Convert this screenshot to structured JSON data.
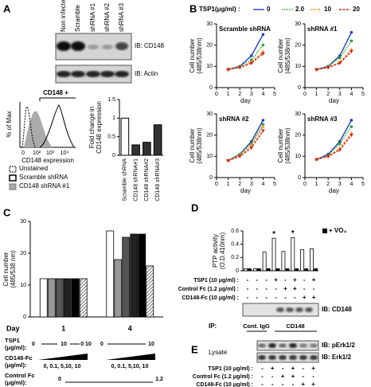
{
  "panel_labels": [
    "A",
    "B",
    "C",
    "D",
    "E"
  ],
  "panel_a": {
    "blot_lanes": [
      "Non infected",
      "Scramble",
      "shRNA #1",
      "shRNA #2",
      "shRNA #3"
    ],
    "blot_labels": [
      "IB: CD148",
      "IB: Actin"
    ],
    "histogram": {
      "gate": "CD148 +",
      "ylabel": "% of Max",
      "xlabel": "CD148 expression",
      "xticks": [
        "0",
        "10²",
        "10³",
        "10⁴"
      ],
      "legend": [
        "Unstained",
        "Scramble shRNA",
        "CD148 shRNA #1"
      ]
    }
  },
  "chart_data": [
    {
      "type": "bar",
      "ylabel": [
        "Fold change in",
        "CD148 expression"
      ],
      "categories": [
        "Scramble shRNA",
        "CD148 shRNA#1",
        "CD148 shRNA#2",
        "CD148 shRNA#3"
      ],
      "values": [
        1.0,
        0.28,
        0.35,
        0.82
      ],
      "colors": [
        "#ffffff",
        "#333333",
        "#333333",
        "#333333"
      ],
      "ylim": [
        0,
        1.5
      ],
      "yticks": [
        0,
        0.5,
        1,
        1.5
      ]
    },
    {
      "type": "line",
      "legend_title": "TSP1(μg/ml) :",
      "title": "Scramble shRNA",
      "xlabel": "day",
      "ylabel": [
        "Cell number",
        "(485/538nm)"
      ],
      "x": [
        1,
        2,
        3,
        4
      ],
      "xlim": [
        0,
        5
      ],
      "xticks": [
        0,
        1,
        2,
        3,
        4,
        5
      ],
      "ylim": [
        0,
        30
      ],
      "yticks": [
        0,
        10,
        20,
        30
      ],
      "series": [
        {
          "name": "0",
          "color": "#1f3fbf",
          "values": [
            8.5,
            10,
            15,
            25
          ]
        },
        {
          "name": "2.0",
          "color": "#2ca02c",
          "values": [
            8.5,
            10,
            13,
            20
          ]
        },
        {
          "name": "10",
          "color": "#f0a030",
          "values": [
            8.5,
            9.5,
            12,
            17
          ]
        },
        {
          "name": "20",
          "color": "#d62020",
          "values": [
            8.5,
            9.5,
            11.5,
            16
          ]
        }
      ]
    },
    {
      "type": "line",
      "title": "shRNA #1",
      "xlabel": "day",
      "ylabel": [
        "Cell number",
        "(485/538nm)"
      ],
      "x": [
        1,
        2,
        3,
        4
      ],
      "xlim": [
        0,
        5
      ],
      "xticks": [
        0,
        1,
        2,
        3,
        4,
        5
      ],
      "ylim": [
        0,
        30
      ],
      "yticks": [
        0,
        10,
        20,
        30
      ],
      "series": [
        {
          "color": "#1f3fbf",
          "values": [
            8.5,
            10,
            15,
            26
          ]
        },
        {
          "color": "#2ca02c",
          "values": [
            8.5,
            10,
            14,
            22
          ]
        },
        {
          "color": "#f0a030",
          "values": [
            8.5,
            9.5,
            12,
            18
          ]
        },
        {
          "color": "#d62020",
          "values": [
            8.5,
            9.5,
            11.5,
            17
          ]
        }
      ]
    },
    {
      "type": "line",
      "title": "shRNA #2",
      "xlabel": "day",
      "ylabel": [
        "Cell number",
        "(485/538nm)"
      ],
      "x": [
        1,
        2,
        3,
        4
      ],
      "xlim": [
        0,
        5
      ],
      "xticks": [
        0,
        1,
        2,
        3,
        4,
        5
      ],
      "ylim": [
        0,
        30
      ],
      "yticks": [
        0,
        10,
        20,
        30
      ],
      "series": [
        {
          "color": "#1f3fbf",
          "values": [
            8,
            11,
            17,
            27
          ]
        },
        {
          "color": "#2ca02c",
          "values": [
            8,
            11,
            16,
            25
          ]
        },
        {
          "color": "#f0a030",
          "values": [
            8,
            10.5,
            15,
            24
          ]
        },
        {
          "color": "#d62020",
          "values": [
            8,
            10,
            14,
            22
          ]
        }
      ]
    },
    {
      "type": "line",
      "title": "shRNA #3",
      "xlabel": "day",
      "ylabel": [
        "Cell number",
        "(485/538nm)"
      ],
      "x": [
        1,
        2,
        3,
        4
      ],
      "xlim": [
        0,
        5
      ],
      "xticks": [
        0,
        1,
        2,
        3,
        4,
        5
      ],
      "ylim": [
        0,
        30
      ],
      "yticks": [
        0,
        10,
        20,
        30
      ],
      "series": [
        {
          "color": "#1f3fbf",
          "values": [
            8.5,
            11,
            17,
            27
          ]
        },
        {
          "color": "#2ca02c",
          "values": [
            8.5,
            10.5,
            16,
            24
          ]
        },
        {
          "color": "#f0a030",
          "values": [
            8.5,
            10,
            14,
            21
          ]
        },
        {
          "color": "#d62020",
          "values": [
            8.5,
            10,
            13,
            20
          ]
        }
      ]
    },
    {
      "type": "grouped_bar",
      "ylabel": [
        "Cell number",
        "(485/538 nm)"
      ],
      "categories_title": "Day",
      "categories": [
        "1",
        "4"
      ],
      "ylim": [
        0,
        30
      ],
      "yticks": [
        0,
        10,
        20,
        30
      ],
      "series": [
        {
          "color": "#ffffff",
          "values": [
            12,
            27
          ]
        },
        {
          "color": "#999999",
          "values": [
            12,
            18
          ]
        },
        {
          "color": "#555555",
          "values": [
            12,
            25
          ]
        },
        {
          "color": "#222222",
          "values": [
            12,
            26
          ]
        },
        {
          "color": "#000000",
          "values": [
            12,
            26
          ]
        },
        {
          "color": "#bbbbbb",
          "hatch": true,
          "values": [
            12,
            16
          ]
        }
      ]
    },
    {
      "type": "grouped_bar",
      "ylabel": [
        "PTP activity",
        "(O.D.410nm)"
      ],
      "categories": [
        null,
        null,
        null,
        null,
        null,
        null,
        null,
        null
      ],
      "ylim": [
        0,
        0.6
      ],
      "yticks": [
        0,
        0.2,
        0.4,
        0.6
      ],
      "series": [
        {
          "color": "#ffffff",
          "values": [
            0.03,
            0.03,
            0.28,
            0.49,
            0.29,
            0.5,
            0.32,
            0.33
          ]
        },
        {
          "name": "+ VO₄",
          "color": "#000000",
          "values": [
            0.03,
            0.03,
            0.03,
            0.03,
            0.03,
            0.03,
            0.03,
            0.03
          ]
        }
      ],
      "significance": [
        null,
        null,
        null,
        "*",
        null,
        "*",
        null,
        null
      ]
    }
  ],
  "panel_c": {
    "rows": [
      {
        "label": [
          "TSP1",
          "(μg/ml):"
        ],
        "items": [
          "0",
          "10",
          "0 10",
          "0",
          "10"
        ]
      },
      {
        "label": [
          "CD148-Fc",
          "(μg/ml):"
        ],
        "items": [
          "0, 0.1, 5,10, 10",
          "0, 0.1, 5,10, 10"
        ]
      },
      {
        "label": [
          "Control Fc",
          "(μg/ml):"
        ],
        "items": [
          "0",
          "1.2"
        ]
      }
    ]
  },
  "panel_d": {
    "rows": [
      {
        "label": "TSP1 (10 μg/ml) :",
        "signs": [
          "-",
          "-",
          "-",
          "+",
          "-",
          "+",
          "-",
          "+"
        ]
      },
      {
        "label": "Control Fc (1.2 μg/ml) :",
        "signs": [
          "-",
          "-",
          "-",
          "-",
          "+",
          "+",
          "-",
          "-"
        ]
      },
      {
        "label": "CD148-Fc (10 μg/ml) :",
        "signs": [
          "-",
          "-",
          "-",
          "-",
          "-",
          "-",
          "+",
          "+"
        ]
      }
    ],
    "blot_label": "IB: CD148",
    "ip_label": "IP:",
    "ip_groups": [
      "Cont. IgG",
      "CD148"
    ]
  },
  "panel_e": {
    "sample": "Lysate",
    "blot_labels": [
      "IB: pErk1/2",
      "IB: Erk1/2"
    ],
    "rows": [
      {
        "label": "TSP1 (10 μg/ml) :",
        "signs": [
          "-",
          "+",
          "-",
          "+",
          "-",
          "+"
        ]
      },
      {
        "label": "Control Fc (1.2 μg/ml) :",
        "signs": [
          "-",
          "-",
          "+",
          "+",
          "-",
          "-"
        ]
      },
      {
        "label": "CD148-Fc (10 μg/ml) :",
        "signs": [
          "-",
          "-",
          "-",
          "-",
          "+",
          "+"
        ]
      }
    ]
  }
}
